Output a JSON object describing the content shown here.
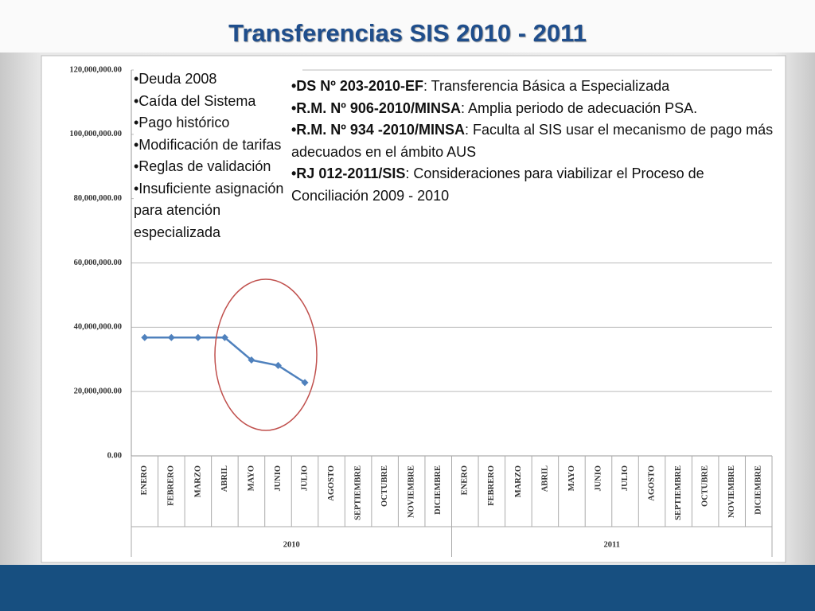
{
  "chart_data": {
    "type": "line",
    "title": "Transferencias SIS 2010 - 2011",
    "categories": [
      "ENERO",
      "FEBRERO",
      "MARZO",
      "ABRIL",
      "MAYO",
      "JUNIO",
      "JULIO",
      "AGOSTO",
      "SEPTIEMBRE",
      "OCTUBRE",
      "NOVIEMBRE",
      "DICIEMBRE",
      "ENERO",
      "FEBRERO",
      "MARZO",
      "ABRIL",
      "MAYO",
      "JUNIO",
      "JULIO",
      "AGOSTO",
      "SEPTIEMBRE",
      "OCTUBRE",
      "NOVIEMBRE",
      "DICIEMBRE"
    ],
    "groups": [
      "2010",
      "2011"
    ],
    "series": [
      {
        "name": "Transferencias",
        "color": "#4f81bd",
        "values": [
          36800000,
          36800000,
          36800000,
          36800000,
          29800000,
          28100000,
          22800000,
          null,
          null,
          null,
          null,
          null,
          null,
          null,
          null,
          null,
          null,
          null,
          null,
          null,
          null,
          null,
          null,
          null
        ]
      }
    ],
    "ylim": [
      0,
      120000000
    ],
    "yticks": [
      {
        "value": 0,
        "label": "0.00"
      },
      {
        "value": 20000000,
        "label": "20,000,000.00"
      },
      {
        "value": 40000000,
        "label": "40,000,000.00"
      },
      {
        "value": 60000000,
        "label": "60,000,000.00"
      },
      {
        "value": 80000000,
        "label": "80,000,000.00"
      },
      {
        "value": 100000000,
        "label": "100,000,000.00"
      },
      {
        "value": 120000000,
        "label": "120,000,000.00"
      }
    ],
    "grid": true,
    "annotations": {
      "causes": [
        "•Deuda 2008",
        "•Caída del Sistema",
        "•Pago histórico",
        "•Modificación de tarifas",
        "•Reglas de validación",
        "•Insuficiente asignación para atención especializada"
      ],
      "norms": [
        {
          "bold": "•DS Nº 203-2010-EF",
          "text": ": Transferencia Básica a Especializada"
        },
        {
          "bold": "•R.M. Nº 906-2010/MINSA",
          "text": ": Amplia periodo de adecuación PSA."
        },
        {
          "bold": "•R.M. Nº 934 -2010/MINSA",
          "text": ": Faculta al SIS  usar el mecanismo de pago más adecuados en el ámbito AUS"
        },
        {
          "bold": "•RJ 012-2011/SIS",
          "text": ": Consideraciones para viabilizar el Proceso de Conciliación 2009 - 2010"
        }
      ]
    }
  }
}
